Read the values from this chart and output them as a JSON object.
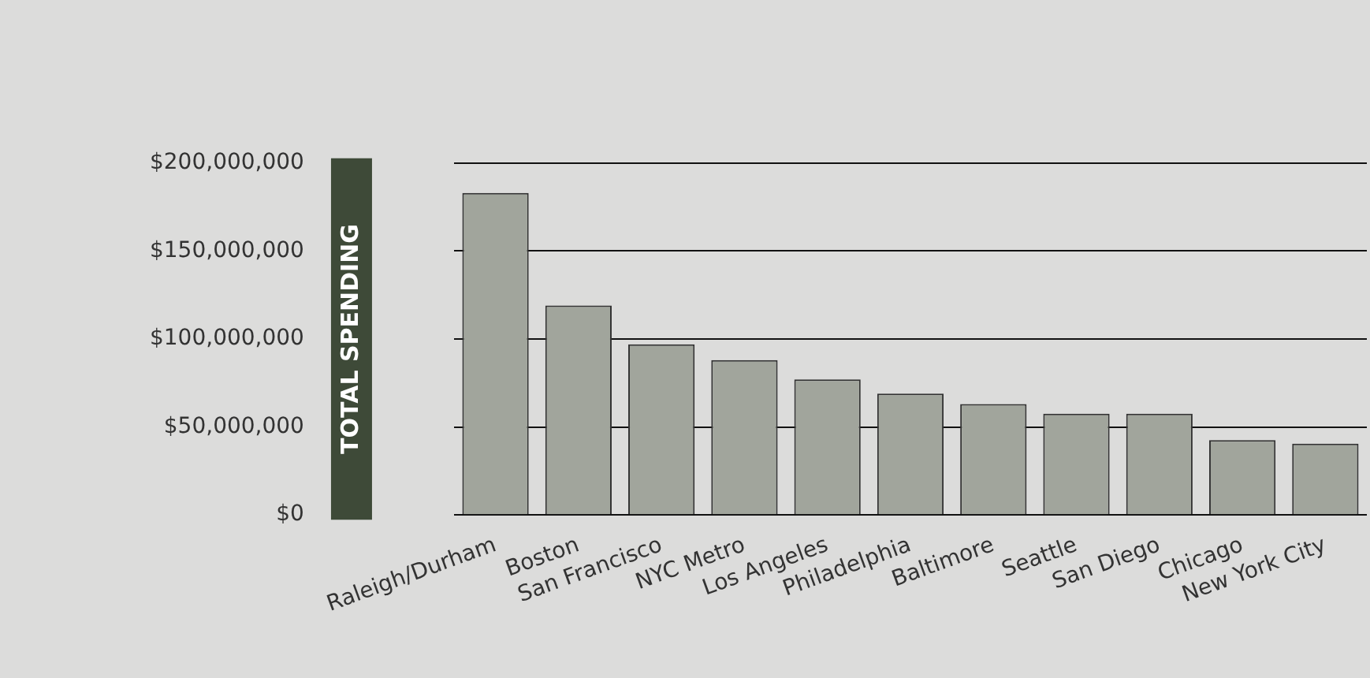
{
  "chart_data": {
    "type": "bar",
    "ylabel": "TOTAL SPENDING",
    "categories": [
      "Raleigh/Durham",
      "Boston",
      "San Francisco",
      "NYC Metro",
      "Los Angeles",
      "Philadelphia",
      "Baltimore",
      "Seattle",
      "San Diego",
      "Chicago",
      "New York City"
    ],
    "values": [
      183000000,
      119000000,
      97000000,
      88000000,
      77000000,
      69000000,
      63000000,
      57500000,
      57500000,
      42500000,
      40500000
    ],
    "color": "#a1a59c",
    "ylim": [
      0,
      200000000
    ],
    "yticks": [
      {
        "value": 0,
        "label": "$0"
      },
      {
        "value": 50000000,
        "label": "$50,000,000"
      },
      {
        "value": 100000000,
        "label": "$100,000,000"
      },
      {
        "value": 150000000,
        "label": "$150,000,000"
      },
      {
        "value": 200000000,
        "label": "$200,000,000"
      }
    ],
    "grid": "y",
    "legend": false
  }
}
